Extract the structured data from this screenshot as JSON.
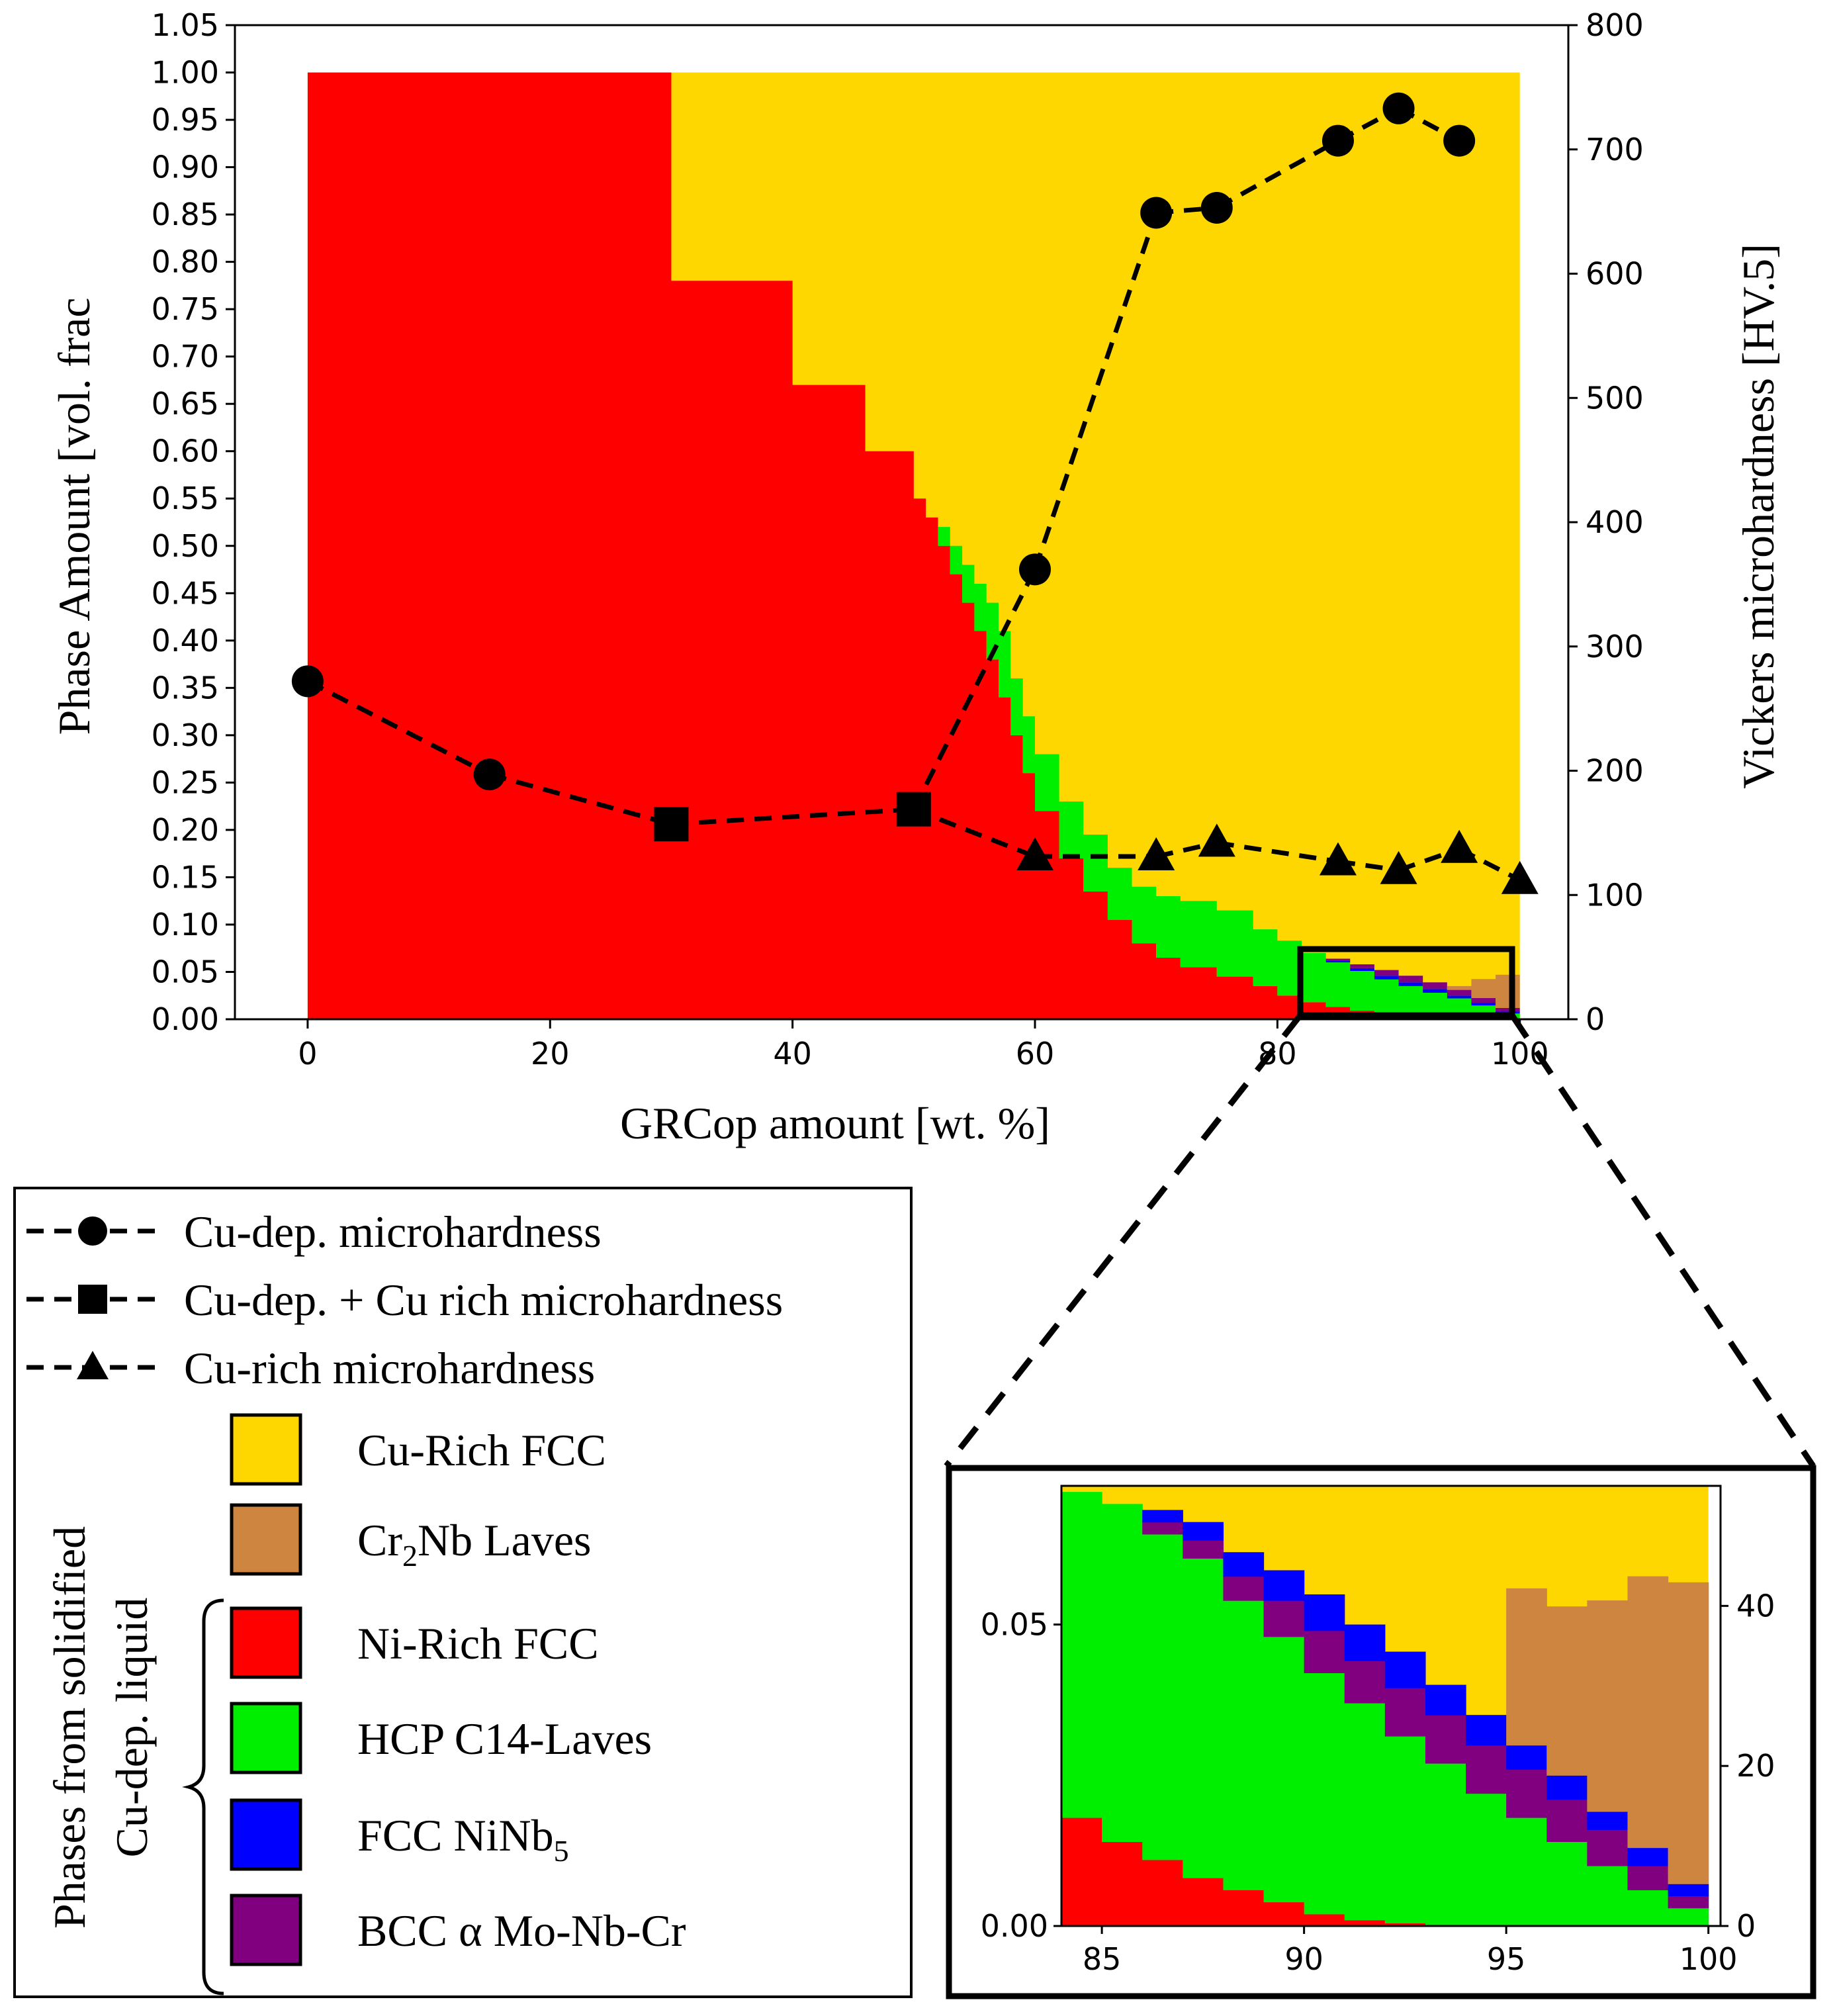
{
  "chart_data": [
    {
      "id": "main",
      "type": "area",
      "title": "",
      "xlabel": "GRCop amount [wt. %]",
      "ylabel": "Phase Amount [vol. frac",
      "y2label": "Vickers microhardness [HV.5]",
      "xlim": [
        -6,
        104
      ],
      "ylim": [
        0,
        1.05
      ],
      "y2lim": [
        0,
        800
      ],
      "xticks": [
        "0",
        "20",
        "40",
        "60",
        "80",
        "100"
      ],
      "yticks": [
        "0.00",
        "0.05",
        "0.10",
        "0.15",
        "0.20",
        "0.25",
        "0.30",
        "0.35",
        "0.40",
        "0.45",
        "0.50",
        "0.55",
        "0.60",
        "0.65",
        "0.70",
        "0.75",
        "0.80",
        "0.85",
        "0.90",
        "0.95",
        "1.00",
        "1.05"
      ],
      "y2ticks": [
        "0",
        "100",
        "200",
        "300",
        "400",
        "500",
        "600",
        "700",
        "800"
      ],
      "phase_x": [
        0,
        16,
        30,
        40,
        46,
        50,
        51,
        52,
        53,
        54,
        55,
        56,
        57,
        58,
        59,
        60,
        62,
        64,
        66,
        68,
        70,
        72,
        75,
        78,
        80,
        82,
        84,
        86,
        88,
        90,
        92,
        94,
        96,
        98,
        100
      ],
      "phases": [
        {
          "name": "Ni-Rich FCC",
          "color": "#ff0000",
          "values": [
            1.0,
            1.0,
            0.78,
            0.67,
            0.6,
            0.55,
            0.53,
            0.5,
            0.47,
            0.44,
            0.41,
            0.38,
            0.34,
            0.3,
            0.26,
            0.22,
            0.17,
            0.135,
            0.105,
            0.08,
            0.065,
            0.055,
            0.045,
            0.035,
            0.025,
            0.018,
            0.013,
            0.009,
            0.006,
            0.004,
            0.002,
            0.001,
            0.0005,
            0.0,
            0.0
          ]
        },
        {
          "name": "HCP C14-Laves",
          "color": "#00ee00",
          "values": [
            0.0,
            0.0,
            0.0,
            0.0,
            0.0,
            0.0,
            0.0,
            0.02,
            0.03,
            0.04,
            0.05,
            0.06,
            0.07,
            0.06,
            0.06,
            0.06,
            0.06,
            0.06,
            0.055,
            0.06,
            0.065,
            0.07,
            0.07,
            0.06,
            0.058,
            0.052,
            0.047,
            0.042,
            0.036,
            0.031,
            0.026,
            0.021,
            0.014,
            0.006,
            0.002
          ]
        },
        {
          "name": "FCC NiNb5",
          "color": "#0000ff",
          "values": [
            0,
            0,
            0,
            0,
            0,
            0,
            0,
            0,
            0,
            0,
            0,
            0,
            0,
            0,
            0,
            0,
            0,
            0,
            0,
            0,
            0,
            0,
            0,
            0,
            0,
            0,
            0.002,
            0.003,
            0.004,
            0.004,
            0.004,
            0.003,
            0.003,
            0.002,
            0.001
          ]
        },
        {
          "name": "BCC α Mo-Nb-Cr",
          "color": "#800080",
          "values": [
            0,
            0,
            0,
            0,
            0,
            0,
            0,
            0,
            0,
            0,
            0,
            0,
            0,
            0,
            0,
            0,
            0,
            0,
            0,
            0,
            0,
            0,
            0,
            0,
            0,
            0,
            0.002,
            0.004,
            0.006,
            0.007,
            0.007,
            0.006,
            0.005,
            0.004,
            0.002
          ]
        },
        {
          "name": "Cr2Nb Laves",
          "color": "#cd853f",
          "values": [
            0,
            0,
            0,
            0,
            0,
            0,
            0,
            0,
            0,
            0,
            0,
            0,
            0,
            0,
            0,
            0,
            0,
            0,
            0,
            0,
            0,
            0,
            0,
            0,
            0,
            0,
            0,
            0,
            0,
            0,
            0,
            0.004,
            0.02,
            0.035,
            0.05
          ]
        },
        {
          "name": "Cu-Rich FCC",
          "color": "#ffd700",
          "values": "remainder to 1.00"
        }
      ],
      "series": [
        {
          "name": "Cu-dep. microhardness",
          "marker": "circle",
          "x": [
            0,
            15,
            60,
            70,
            75,
            85,
            90,
            95
          ],
          "y": [
            272,
            197,
            362,
            649,
            653,
            707,
            733,
            707
          ]
        },
        {
          "name": "Cu-dep. + Cu rich microhardness",
          "marker": "square",
          "x": [
            30,
            50
          ],
          "y": [
            157,
            169
          ]
        },
        {
          "name": "Cu-rich microhardness",
          "marker": "triangle",
          "x": [
            60,
            70,
            75,
            85,
            90,
            95,
            100
          ],
          "y": [
            131,
            131,
            142,
            127,
            120,
            137,
            112
          ]
        }
      ],
      "line_links": [
        {
          "from": [
            0,
            272
          ],
          "to": [
            15,
            197
          ]
        },
        {
          "from": [
            15,
            197
          ],
          "to": [
            30,
            157
          ]
        },
        {
          "from": [
            30,
            157
          ],
          "to": [
            50,
            169
          ]
        },
        {
          "from": [
            50,
            169
          ],
          "to": [
            60,
            362
          ]
        },
        {
          "from": [
            60,
            362
          ],
          "to": [
            70,
            649
          ]
        },
        {
          "from": [
            70,
            649
          ],
          "to": [
            75,
            653
          ]
        },
        {
          "from": [
            75,
            653
          ],
          "to": [
            85,
            707
          ]
        },
        {
          "from": [
            85,
            707
          ],
          "to": [
            90,
            733
          ]
        },
        {
          "from": [
            90,
            733
          ],
          "to": [
            95,
            707
          ]
        },
        {
          "from": [
            50,
            169
          ],
          "to": [
            60,
            131
          ]
        },
        {
          "from": [
            60,
            131
          ],
          "to": [
            70,
            131
          ]
        },
        {
          "from": [
            70,
            131
          ],
          "to": [
            75,
            142
          ]
        },
        {
          "from": [
            75,
            142
          ],
          "to": [
            85,
            127
          ]
        },
        {
          "from": [
            85,
            127
          ],
          "to": [
            90,
            120
          ]
        },
        {
          "from": [
            90,
            120
          ],
          "to": [
            95,
            137
          ]
        },
        {
          "from": [
            95,
            137
          ],
          "to": [
            100,
            112
          ]
        }
      ],
      "zoom_box": {
        "x": [
          83,
          100
        ],
        "y": [
          0,
          0.074
        ]
      }
    },
    {
      "id": "inset",
      "type": "area",
      "xlim": [
        84,
        100.3
      ],
      "ylim": [
        0,
        0.073
      ],
      "y2lim": [
        0,
        55
      ],
      "xticks": [
        "85",
        "90",
        "95",
        "100"
      ],
      "yticks": [
        "0.00",
        "0.05"
      ],
      "y2ticks": [
        "0",
        "20",
        "40"
      ],
      "step_x": [
        84,
        85,
        86,
        87,
        88,
        89,
        90,
        91,
        92,
        93,
        94,
        95,
        96,
        97,
        98,
        99,
        100
      ],
      "phases": [
        {
          "name": "Ni-Rich FCC",
          "color": "#ff0000",
          "values": [
            0.018,
            0.014,
            0.011,
            0.008,
            0.006,
            0.004,
            0.002,
            0.001,
            0.0005,
            0,
            0,
            0,
            0,
            0,
            0,
            0
          ]
        },
        {
          "name": "HCP C14-Laves",
          "color": "#00ee00",
          "values": [
            0.054,
            0.056,
            0.054,
            0.053,
            0.048,
            0.044,
            0.04,
            0.036,
            0.031,
            0.027,
            0.022,
            0.018,
            0.014,
            0.01,
            0.006,
            0.003
          ]
        },
        {
          "name": "BCC α Mo-Nb-Cr",
          "color": "#800080",
          "values": [
            0,
            0,
            0.002,
            0.003,
            0.004,
            0.006,
            0.007,
            0.007,
            0.008,
            0.008,
            0.008,
            0.008,
            0.007,
            0.006,
            0.004,
            0.002
          ]
        },
        {
          "name": "FCC NiNb5",
          "color": "#0000ff",
          "values": [
            0,
            0,
            0.002,
            0.003,
            0.004,
            0.005,
            0.006,
            0.006,
            0.006,
            0.005,
            0.005,
            0.004,
            0.004,
            0.003,
            0.003,
            0.002
          ]
        },
        {
          "name": "Cr2Nb Laves",
          "color": "#cd853f",
          "values": [
            0,
            0,
            0,
            0,
            0,
            0,
            0,
            0,
            0,
            0,
            0,
            0.026,
            0.028,
            0.035,
            0.045,
            0.05
          ]
        },
        {
          "name": "Cu-Rich FCC",
          "color": "#ffd700",
          "values": "remainder to top"
        }
      ]
    }
  ],
  "legend": {
    "lines": [
      {
        "label": "Cu-dep. microhardness",
        "marker": "circle"
      },
      {
        "label": "Cu-dep. + Cu rich microhardness",
        "marker": "square"
      },
      {
        "label": "Cu-rich microhardness",
        "marker": "triangle"
      }
    ],
    "patches": [
      {
        "label": "Cu-Rich FCC",
        "color": "#ffd700"
      },
      {
        "label": "Cr",
        "sub": "2",
        "label_tail": "Nb Laves",
        "color": "#cd853f"
      },
      {
        "label": "Ni-Rich FCC",
        "color": "#ff0000"
      },
      {
        "label": "HCP C14-Laves",
        "color": "#00ee00"
      },
      {
        "label": "FCC NiNb",
        "sub": "5",
        "label_tail": "",
        "color": "#0000ff"
      },
      {
        "label": "BCC α Mo-Nb-Cr",
        "color": "#800080"
      }
    ],
    "group_label_1": "Phases from solidified",
    "group_label_2": "Cu-dep. liquid"
  }
}
